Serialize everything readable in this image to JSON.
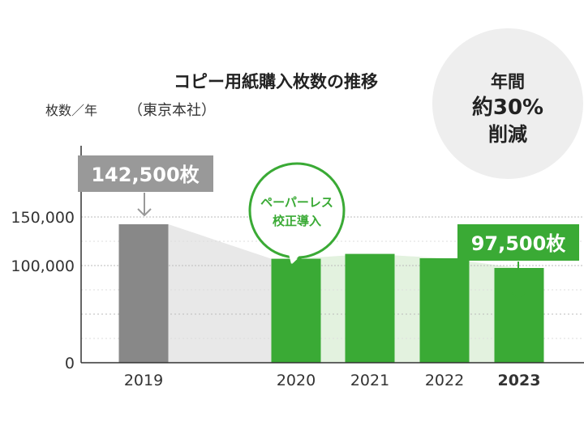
{
  "chart_data": {
    "type": "bar",
    "title": "コピー用紙購入枚数の推移",
    "subtitle": "（東京本社）",
    "ylabel": "枚数／年",
    "categories": [
      "2019",
      "2020",
      "2021",
      "2022",
      "2023"
    ],
    "values": [
      142500,
      107000,
      112000,
      107500,
      97500
    ],
    "ylim": [
      0,
      150000
    ],
    "yticks": [
      "0",
      "100,000",
      "150,000"
    ],
    "ytick_values": [
      0,
      100000,
      150000
    ],
    "colors": {
      "2019": "#888888",
      "2020": "#3aaa35",
      "2021": "#3aaa35",
      "2022": "#3aaa35",
      "2023": "#3aaa35",
      "highlight_tick": "#3aaa35",
      "trend_area": "#e8e8e8",
      "trend_area_green": "#e3f2df"
    },
    "annotations": {
      "start_label": "142,500枚",
      "end_label": "97,500枚",
      "event_bubble": [
        "ペーパーレス",
        "校正導入"
      ],
      "reduction_circle": [
        "年間",
        "約30%",
        "削減"
      ]
    }
  }
}
